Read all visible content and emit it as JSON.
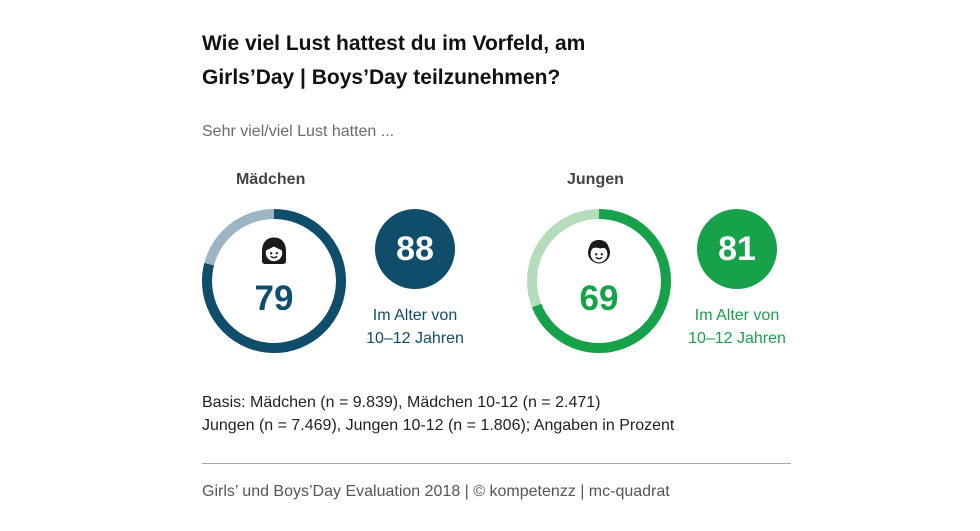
{
  "header": {
    "title_line1": "Wie viel Lust hattest du im Vorfeld, am",
    "title_line2": "Girls’Day | Boys’Day teilzunehmen?",
    "subtitle": "Sehr viel/viel Lust hatten ..."
  },
  "chart_data": {
    "type": "pie",
    "title": "Wie viel Lust hattest du im Vorfeld, am Girls’Day | Boys’Day teilzunehmen?",
    "subtitle": "Sehr viel/viel Lust hatten ...",
    "unit": "Prozent",
    "groups": [
      {
        "name": "Mädchen",
        "icon": "girl-face-icon",
        "overall": 79,
        "age_group_value": 88,
        "age_group_label_line1": "Im Alter von",
        "age_group_label_line2": "10–12 Jahren",
        "color": "#0f4d6b",
        "remainder_color": "#9db4c4"
      },
      {
        "name": "Jungen",
        "icon": "boy-face-icon",
        "overall": 69,
        "age_group_value": 81,
        "age_group_label_line1": "Im Alter von",
        "age_group_label_line2": "10–12 Jahren",
        "color": "#16a14a",
        "remainder_color": "#b5dcbb"
      }
    ]
  },
  "footer": {
    "basis_line1": "Basis: Mädchen (n = 9.839), Mädchen 10-12 (n = 2.471)",
    "basis_line2": "Jungen (n = 7.469), Jungen 10-12 (n = 1.806); Angaben in Prozent",
    "source": "Girls’ und Boys’Day Evaluation 2018 | © kompetenzz | mc-quadrat"
  }
}
